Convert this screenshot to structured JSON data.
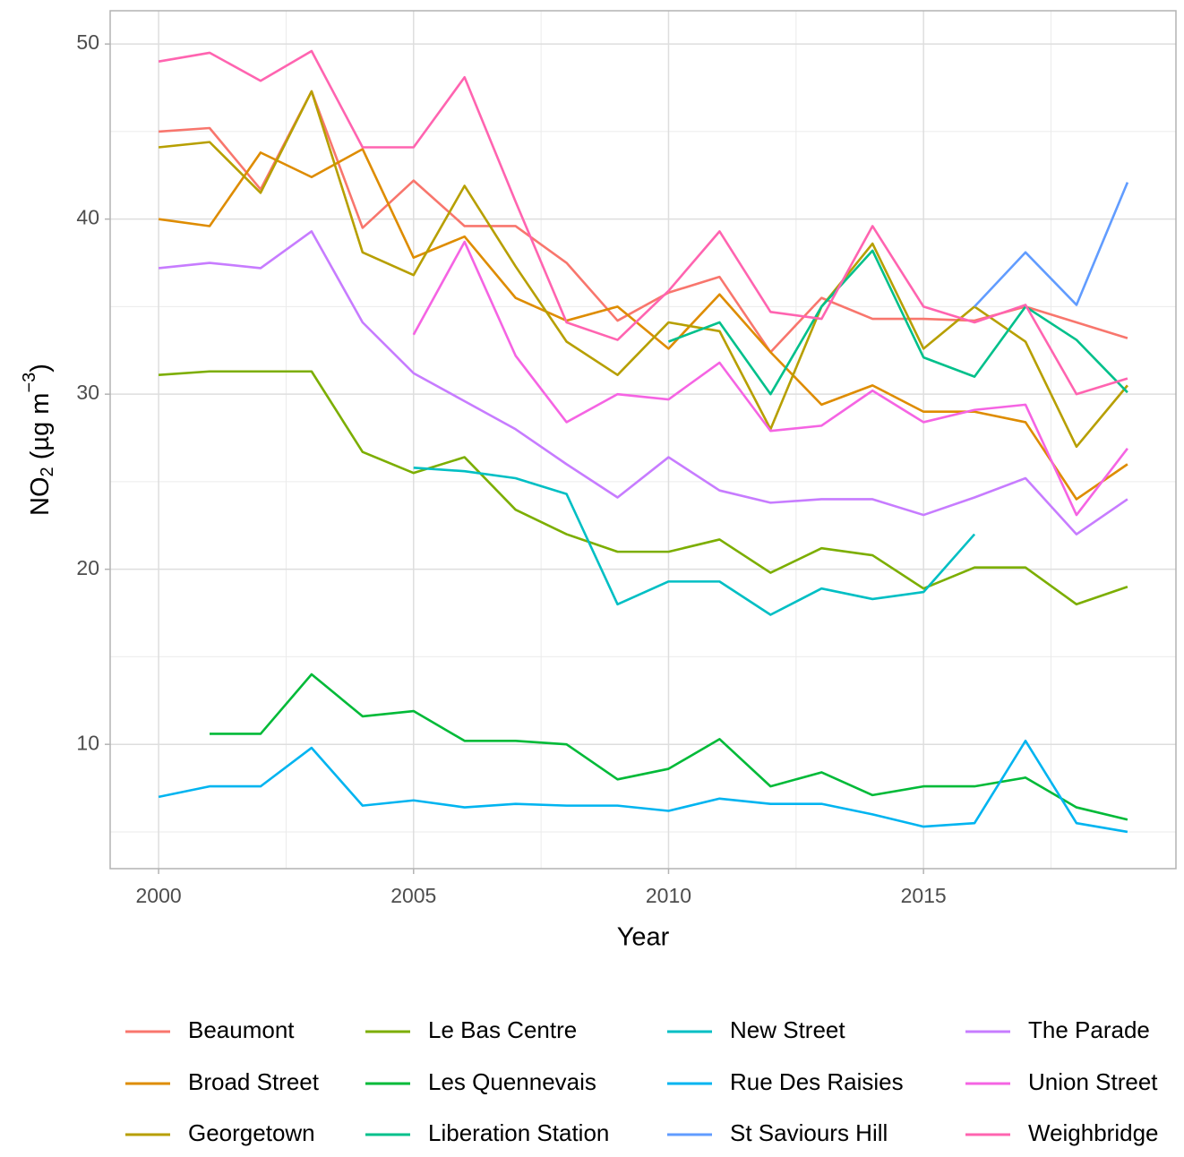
{
  "chart_data": {
    "type": "line",
    "xlabel": "Year",
    "ylabel": {
      "text": "NO",
      "sub": "2",
      "rest": " (µg m",
      "sup": "−3",
      "end": ")"
    },
    "x": [
      2000,
      2001,
      2002,
      2003,
      2004,
      2005,
      2006,
      2007,
      2008,
      2009,
      2010,
      2011,
      2012,
      2013,
      2014,
      2015,
      2016,
      2017,
      2018,
      2019
    ],
    "xlim": [
      1999.05,
      2019.95
    ],
    "xticks": [
      2000,
      2005,
      2010,
      2015
    ],
    "ylim": [
      2.9,
      51.9
    ],
    "yticks": [
      10,
      20,
      30,
      40,
      50
    ],
    "grid": true,
    "legend": "bottom",
    "series": [
      {
        "name": "Beaumont",
        "color": "#F8766D",
        "values": [
          45.0,
          45.2,
          41.7,
          47.3,
          39.5,
          42.2,
          39.6,
          39.6,
          37.5,
          34.2,
          35.8,
          36.7,
          32.4,
          35.5,
          34.3,
          34.3,
          34.2,
          35.0,
          34.1,
          33.2
        ]
      },
      {
        "name": "Broad Street",
        "color": "#DE8C00",
        "values": [
          40.0,
          39.6,
          43.8,
          42.4,
          44.0,
          37.8,
          39.0,
          35.5,
          34.2,
          35.0,
          32.6,
          35.7,
          32.4,
          29.4,
          30.5,
          29.0,
          29.0,
          28.4,
          24.0,
          26.0
        ]
      },
      {
        "name": "Georgetown",
        "color": "#B79F00",
        "values": [
          44.1,
          44.4,
          41.5,
          47.3,
          38.1,
          36.8,
          41.9,
          37.3,
          33.0,
          31.1,
          34.1,
          33.6,
          28.0,
          35.0,
          38.6,
          32.6,
          35.0,
          33.0,
          27.0,
          30.5
        ]
      },
      {
        "name": "Le Bas Centre",
        "color": "#7CAE00",
        "values": [
          31.1,
          31.3,
          31.3,
          31.3,
          26.7,
          25.5,
          26.4,
          23.4,
          22.0,
          21.0,
          21.0,
          21.7,
          19.8,
          21.2,
          20.8,
          18.9,
          20.1,
          20.1,
          18.0,
          19.0
        ]
      },
      {
        "name": "Les Quennevais",
        "color": "#00BA38",
        "values": [
          null,
          10.6,
          10.6,
          14.0,
          11.6,
          11.9,
          10.2,
          10.2,
          10.0,
          8.0,
          8.6,
          10.3,
          7.6,
          8.4,
          7.1,
          7.6,
          7.6,
          8.1,
          6.4,
          5.7
        ]
      },
      {
        "name": "Liberation Station",
        "color": "#00C08B",
        "values": [
          null,
          null,
          null,
          null,
          null,
          null,
          null,
          null,
          null,
          null,
          33.0,
          34.1,
          30.0,
          35.0,
          38.2,
          32.1,
          31.0,
          35.0,
          33.1,
          30.1
        ]
      },
      {
        "name": "New Street",
        "color": "#00BFC4",
        "values": [
          null,
          null,
          null,
          null,
          null,
          25.8,
          25.6,
          25.2,
          24.3,
          18.0,
          19.3,
          19.3,
          17.4,
          18.9,
          18.3,
          18.7,
          22.0,
          null,
          null,
          null
        ]
      },
      {
        "name": "Rue Des Raisies",
        "color": "#00B4F0",
        "values": [
          7.0,
          7.6,
          7.6,
          9.8,
          6.5,
          6.8,
          6.4,
          6.6,
          6.5,
          6.5,
          6.2,
          6.9,
          6.6,
          6.6,
          6.0,
          5.3,
          5.5,
          10.2,
          5.5,
          5.0
        ]
      },
      {
        "name": "St Saviours Hill",
        "color": "#619CFF",
        "values": [
          null,
          null,
          null,
          null,
          null,
          null,
          null,
          null,
          null,
          null,
          null,
          null,
          null,
          null,
          null,
          null,
          35.0,
          38.1,
          35.1,
          42.1
        ]
      },
      {
        "name": "The Parade",
        "color": "#C77CFF",
        "values": [
          37.2,
          37.5,
          37.2,
          39.3,
          34.1,
          31.2,
          29.6,
          28.0,
          26.0,
          24.1,
          26.4,
          24.5,
          23.8,
          24.0,
          24.0,
          23.1,
          24.1,
          25.2,
          22.0,
          24.0
        ]
      },
      {
        "name": "Union Street",
        "color": "#F564E3",
        "values": [
          null,
          null,
          null,
          null,
          null,
          33.4,
          38.7,
          32.2,
          28.4,
          30.0,
          29.7,
          31.8,
          27.9,
          28.2,
          30.2,
          28.4,
          29.1,
          29.4,
          23.1,
          26.9
        ]
      },
      {
        "name": "Weighbridge",
        "color": "#FF64B0",
        "values": [
          49.0,
          49.5,
          47.9,
          49.6,
          44.1,
          44.1,
          48.1,
          41.0,
          34.1,
          33.1,
          35.9,
          39.3,
          34.7,
          34.3,
          39.6,
          35.0,
          34.1,
          35.1,
          30.0,
          30.9
        ]
      }
    ]
  }
}
